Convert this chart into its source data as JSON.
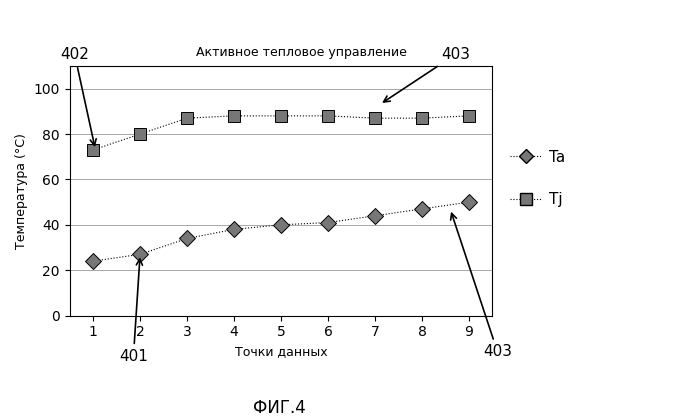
{
  "title": "ФИГ.4",
  "annotation_text": "Активное тепловое управление",
  "xlabel": "Точки данных",
  "ylabel": "Температура (°C)",
  "xlim": [
    0.5,
    9.5
  ],
  "ylim": [
    0,
    110
  ],
  "yticks": [
    0,
    20,
    40,
    60,
    80,
    100
  ],
  "xticks": [
    1,
    2,
    3,
    4,
    5,
    6,
    7,
    8,
    9
  ],
  "x": [
    1,
    2,
    3,
    4,
    5,
    6,
    7,
    8,
    9
  ],
  "Ta": [
    24,
    27,
    34,
    38,
    40,
    41,
    44,
    47,
    50
  ],
  "Tj": [
    73,
    80,
    87,
    88,
    88,
    88,
    87,
    87,
    88
  ],
  "label_402": "402",
  "label_401": "401",
  "label_403_top": "403",
  "label_403_bottom": "403",
  "legend_Ta": "Ta",
  "legend_Tj": "Tj",
  "background_color": "#ffffff"
}
